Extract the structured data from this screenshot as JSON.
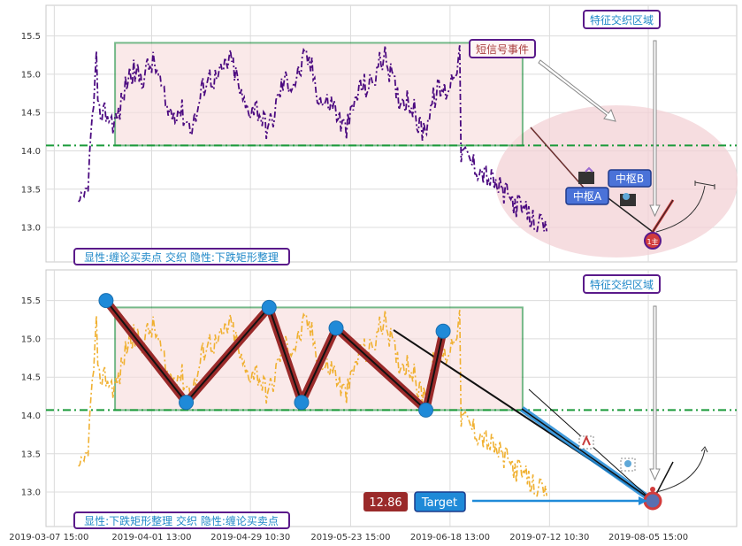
{
  "chart_data": [
    {
      "type": "line",
      "panel": "top",
      "caption": "显性:缠论买卖点 交织 隐性:下跌矩形整理",
      "region_label": "特征交织区域",
      "event_label": "短信号事件",
      "pivot_labels": [
        "中枢A",
        "中枢B"
      ],
      "marker_label": "1主",
      "ylim": [
        12.55,
        15.9
      ],
      "yticks": [
        "13.0",
        "13.5",
        "14.0",
        "14.5",
        "15.0",
        "15.5"
      ],
      "threshold": 14.07,
      "rectangle": {
        "x_start": 0.1,
        "x_end": 0.69,
        "y_low": 14.07,
        "y_high": 15.41
      },
      "colors": {
        "line": "#4b0a80",
        "rect": "#1a8a3a",
        "threshold": "#1a9a3a",
        "ellipse": "#f1c8cc",
        "accent": "#c83c3c"
      }
    },
    {
      "type": "line",
      "panel": "bottom",
      "caption": "显性:下跌矩形整理 交织 隐性:缠论买卖点",
      "region_label": "特征交织区域",
      "price_tag": "12.86",
      "target_label": "Target",
      "ylim": [
        12.55,
        15.9
      ],
      "yticks": [
        "13.0",
        "13.5",
        "14.0",
        "14.5",
        "15.0",
        "15.5"
      ],
      "threshold": 14.07,
      "rectangle": {
        "x_start": 0.1,
        "x_end": 0.69,
        "y_low": 14.07,
        "y_high": 15.41
      },
      "zigzag": [
        {
          "x": 0.087,
          "y": 15.5
        },
        {
          "x": 0.203,
          "y": 14.17
        },
        {
          "x": 0.323,
          "y": 15.41
        },
        {
          "x": 0.37,
          "y": 14.17
        },
        {
          "x": 0.42,
          "y": 15.14
        },
        {
          "x": 0.55,
          "y": 14.07
        },
        {
          "x": 0.575,
          "y": 15.1
        }
      ],
      "target_price": 12.86,
      "colors": {
        "line": "#f0b030",
        "rect": "#1a8a3a",
        "threshold": "#1a9a3a",
        "zigzag": "#9a2a2a",
        "point": "#1f8ad8",
        "target": "#1a6fc4"
      }
    }
  ],
  "x_ticks": [
    "2019-03-07 15:00",
    "2019-04-01 13:00",
    "2019-04-29 10:30",
    "2019-05-23 15:00",
    "2019-06-18 13:00",
    "2019-07-12 10:30",
    "2019-08-05 15:00"
  ]
}
